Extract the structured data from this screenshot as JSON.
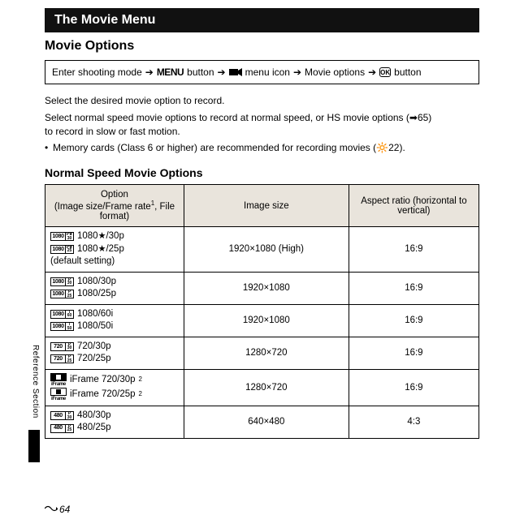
{
  "chapter_title": "The Movie Menu",
  "section_title": "Movie Options",
  "nav": {
    "p1": "Enter shooting mode",
    "arrow": "➔",
    "menu_word": "MENU",
    "p2": "button",
    "p3": "menu icon",
    "p4": "Movie options",
    "ok": "OK",
    "p5": "button"
  },
  "para1": "Select the desired movie option to record.",
  "para2a": "Select normal speed movie options to record at normal speed, or HS movie options (",
  "para2_ref": "65)",
  "para2b": "to record in slow or fast motion.",
  "bullet1a": "Memory cards (Class 6 or higher) are recommended for recording movies (",
  "bullet1_ref": "22).",
  "sub_heading": "Normal Speed Movie Options",
  "headers": {
    "c1a": "Option",
    "c1b": "(Image size/Frame rate",
    "c1sup": "1",
    "c1c": ", File format)",
    "c2": "Image size",
    "c3": "Aspect ratio (horizontal to vertical)"
  },
  "rows": [
    {
      "icons": [
        {
          "res": "1080",
          "sub": [
            "P★",
            "30"
          ]
        },
        {
          "res": "1080",
          "sub": [
            "P★",
            "25"
          ]
        }
      ],
      "lines": [
        "1080★/30p",
        "1080★/25p",
        "(default setting)"
      ],
      "size": "1920×1080 (High)",
      "ar": "16:9"
    },
    {
      "icons": [
        {
          "res": "1080",
          "sub": [
            "P",
            "30"
          ]
        },
        {
          "res": "1080",
          "sub": [
            "P",
            "25"
          ]
        }
      ],
      "lines": [
        "1080/30p",
        "1080/25p"
      ],
      "size": "1920×1080",
      "ar": "16:9"
    },
    {
      "icons": [
        {
          "res": "1080",
          "sub": [
            "i",
            "60"
          ]
        },
        {
          "res": "1080",
          "sub": [
            "i",
            "50"
          ]
        }
      ],
      "lines": [
        "1080/60i",
        "1080/50i"
      ],
      "size": "1920×1080",
      "ar": "16:9"
    },
    {
      "icons": [
        {
          "res": "720",
          "sub": [
            "P",
            "30"
          ]
        },
        {
          "res": "720",
          "sub": [
            "P",
            "25"
          ]
        }
      ],
      "lines": [
        "720/30p",
        "720/25p"
      ],
      "size": "1280×720",
      "ar": "16:9"
    },
    {
      "iframe": true,
      "lines_sup": "2",
      "lines": [
        "iFrame 720/30p",
        "iFrame 720/25p"
      ],
      "size": "1280×720",
      "ar": "16:9"
    },
    {
      "icons": [
        {
          "res": "480",
          "sub": [
            "P",
            "30"
          ]
        },
        {
          "res": "480",
          "sub": [
            "P",
            "25"
          ]
        }
      ],
      "lines": [
        "480/30p",
        "480/25p"
      ],
      "size": "640×480",
      "ar": "4:3"
    }
  ],
  "side_label": "Reference Section",
  "page_ref_icon": "➡",
  "page_number": "64"
}
